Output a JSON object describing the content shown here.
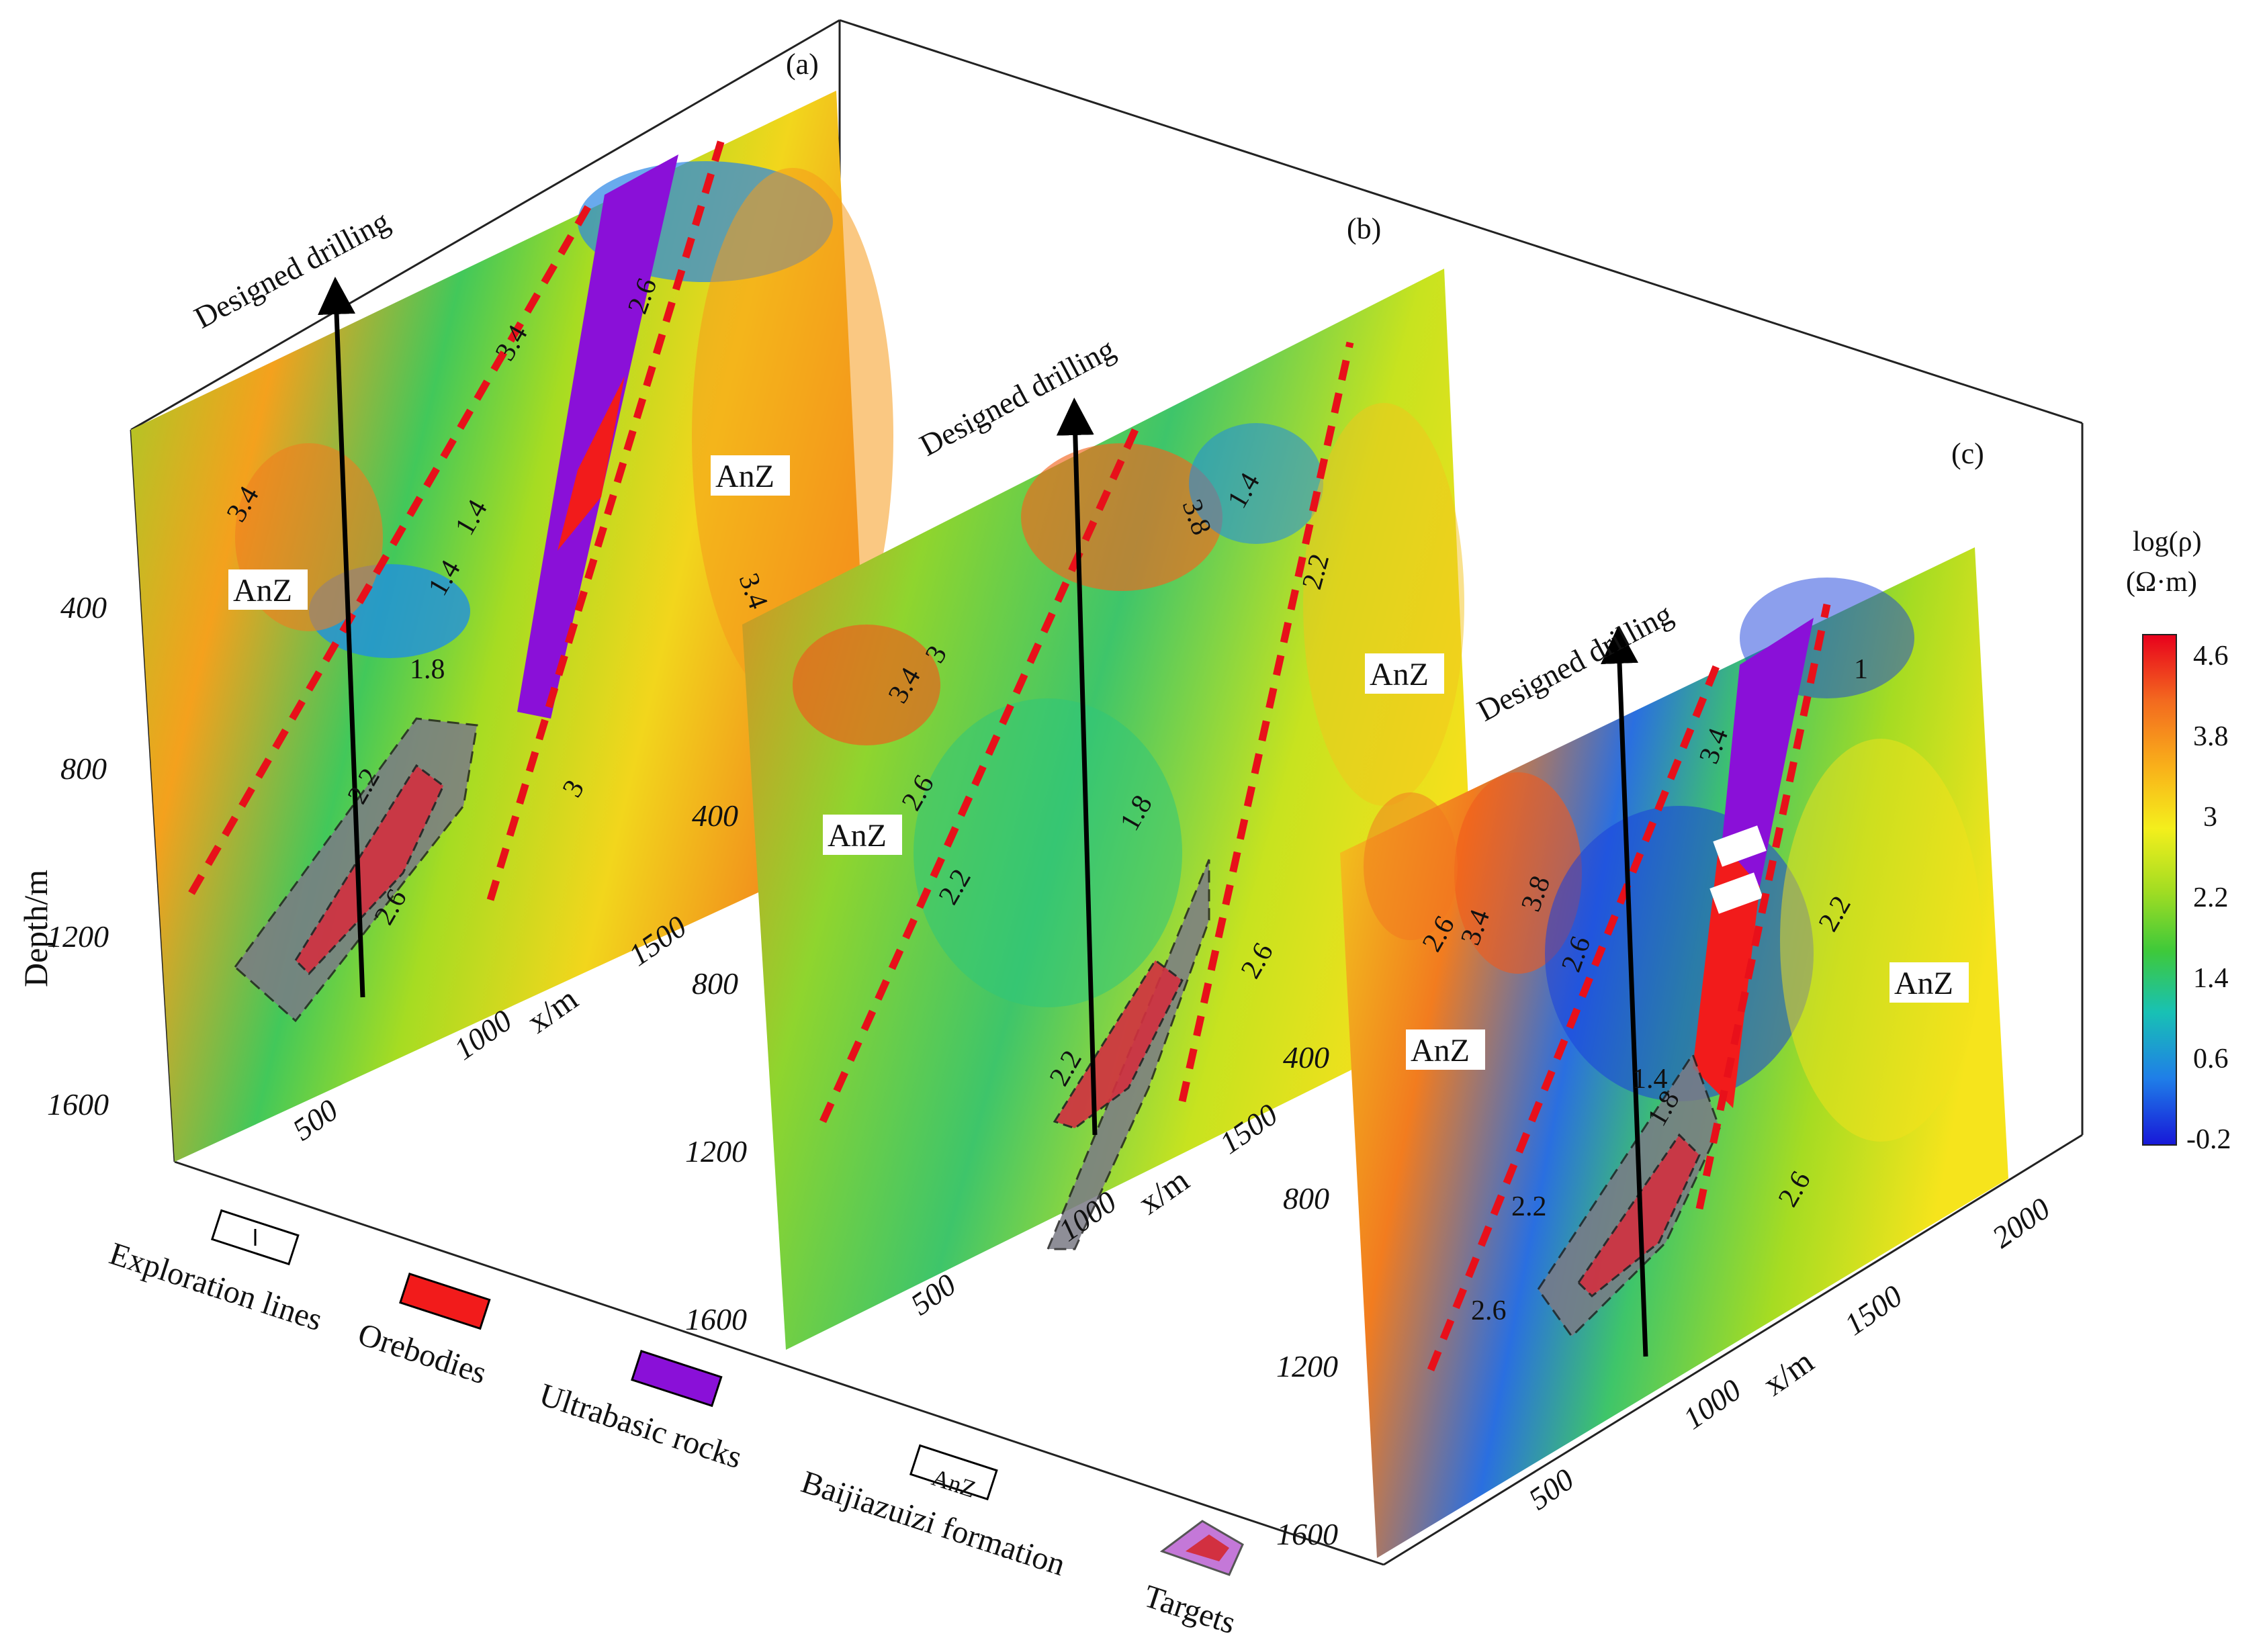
{
  "panels": [
    {
      "label": "(a)",
      "drilling": "Designed drilling",
      "anz": [
        "AnZ",
        "AnZ"
      ],
      "contours": [
        "3.4",
        "1.4",
        "1.4",
        "1.8",
        "2.2",
        "2.6",
        "3",
        "3.4",
        "3.4",
        "2.6"
      ]
    },
    {
      "label": "(b)",
      "drilling": "Designed drilling",
      "anz": [
        "AnZ",
        "AnZ"
      ],
      "contours": [
        "3.4",
        "3",
        "2.6",
        "2.2",
        "1.8",
        "2.6",
        "2.2",
        "1.4",
        "3.8",
        "2.2"
      ]
    },
    {
      "label": "(c)",
      "drilling": "Designed drilling",
      "anz": [
        "AnZ",
        "AnZ"
      ],
      "contours": [
        "2.6",
        "3.4",
        "3.8",
        "2.6",
        "1.4",
        "1.8",
        "2.2",
        "2.6",
        "2.6",
        "2.2",
        "3.4",
        "1"
      ]
    }
  ],
  "axes": {
    "depth_label": "Depth/m",
    "x_label": "x/m",
    "depth_ticks_a": [
      "400",
      "800",
      "1200",
      "1600"
    ],
    "depth_ticks_b": [
      "400",
      "800",
      "1200",
      "1600"
    ],
    "depth_ticks_c": [
      "400",
      "800",
      "1200",
      "1600"
    ],
    "x_ticks_a": [
      "500",
      "1000",
      "1500"
    ],
    "x_ticks_b": [
      "500",
      "1000",
      "1500"
    ],
    "x_ticks_c": [
      "500",
      "1000",
      "1500",
      "2000"
    ]
  },
  "colorbar": {
    "title_line1": "log(ρ)",
    "title_line2": "(Ω·m)",
    "ticks": [
      "4.6",
      "3.8",
      "3",
      "2.2",
      "1.4",
      "0.6",
      "-0.2"
    ],
    "colors": [
      "#e8001c",
      "#f36a1f",
      "#f9b11a",
      "#f4ef1c",
      "#a4dd22",
      "#3ec93a",
      "#18c1b4",
      "#1f7ee8",
      "#1717d8"
    ]
  },
  "legend": {
    "exploration_lines": "Exploration lines",
    "orebodies": "Orebodies",
    "ultrabasic": "Ultrabasic rocks",
    "formation_box": "AnZ",
    "formation": "Baijiazuizi formation",
    "targets": "Targets"
  },
  "colors": {
    "orebody": "#f21b1b",
    "ultrabasic": "#8a10d8",
    "fault_dash": "#e8101a",
    "target_fill": "#c478d8"
  }
}
